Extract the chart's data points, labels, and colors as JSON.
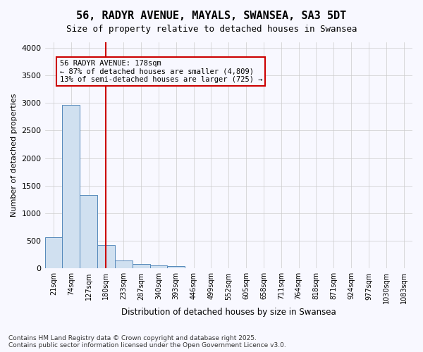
{
  "title_line1": "56, RADYR AVENUE, MAYALS, SWANSEA, SA3 5DT",
  "title_line2": "Size of property relative to detached houses in Swansea",
  "xlabel": "Distribution of detached houses by size in Swansea",
  "ylabel": "Number of detached properties",
  "bar_values": [
    560,
    2970,
    1330,
    430,
    150,
    85,
    55,
    40,
    0,
    0,
    0,
    0,
    0,
    0,
    0,
    0,
    0,
    0,
    0,
    0,
    0
  ],
  "bar_labels": [
    "21sqm",
    "74sqm",
    "127sqm",
    "180sqm",
    "233sqm",
    "287sqm",
    "340sqm",
    "393sqm",
    "446sqm",
    "499sqm",
    "552sqm",
    "605sqm",
    "658sqm",
    "711sqm",
    "764sqm",
    "818sqm",
    "871sqm",
    "924sqm",
    "977sqm",
    "1030sqm",
    "1083sqm"
  ],
  "bar_color": "#d0e0f0",
  "bar_edge_color": "#5588bb",
  "grid_color": "#cccccc",
  "vline_x": 3,
  "vline_color": "#cc0000",
  "annotation_text": "56 RADYR AVENUE: 178sqm\n← 87% of detached houses are smaller (4,809)\n13% of semi-detached houses are larger (725) →",
  "annotation_box_color": "#cc0000",
  "ylim": [
    0,
    4100
  ],
  "yticks": [
    0,
    500,
    1000,
    1500,
    2000,
    2500,
    3000,
    3500,
    4000
  ],
  "footnote_line1": "Contains HM Land Registry data © Crown copyright and database right 2025.",
  "footnote_line2": "Contains public sector information licensed under the Open Government Licence v3.0.",
  "bg_color": "#f8f8ff"
}
